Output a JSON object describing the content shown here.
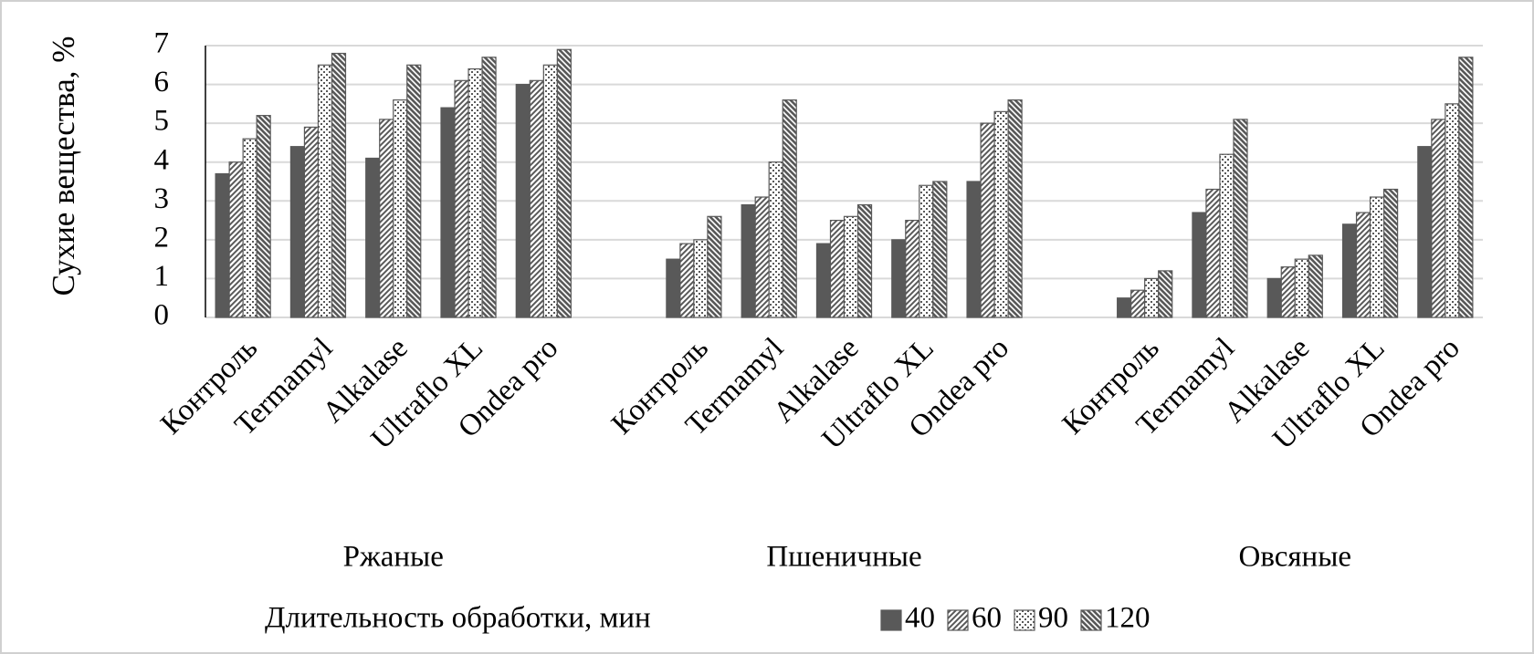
{
  "chart_data": {
    "type": "grouped-bar",
    "y_label": "Сухие вещества, %",
    "groups": [
      {
        "name": "Ржаные",
        "categories": [
          "Контроль",
          "Termamyl",
          "Alkalase",
          "Ultraflo XL",
          "Ondea pro"
        ]
      },
      {
        "name": "Пшеничные",
        "categories": [
          "Контроль",
          "Termamyl",
          "Alkalase",
          "Ultraflo XL",
          "Ondea pro"
        ]
      },
      {
        "name": "Овсяные",
        "categories": [
          "Контроль",
          "Termamyl",
          "Alkalase",
          "Ultraflo XL",
          "Ondea pro"
        ]
      }
    ],
    "legend_title": "Длительность обработки, мин",
    "series": [
      {
        "name": "40",
        "color": "#595959",
        "pattern": "solid",
        "values": [
          3.7,
          4.4,
          4.1,
          5.4,
          6.0,
          1.5,
          2.9,
          1.9,
          2.0,
          3.5,
          0.5,
          2.7,
          1.0,
          2.4,
          4.4
        ]
      },
      {
        "name": "60",
        "color": "#595959",
        "pattern": "diagonal",
        "values": [
          4.0,
          4.9,
          5.1,
          6.1,
          6.1,
          1.9,
          3.1,
          2.5,
          2.5,
          5.0,
          0.7,
          3.3,
          1.3,
          2.7,
          5.1
        ]
      },
      {
        "name": "90",
        "color": "#595959",
        "pattern": "checker",
        "values": [
          4.6,
          6.5,
          5.6,
          6.4,
          6.5,
          2.0,
          4.0,
          2.6,
          3.4,
          5.3,
          1.0,
          4.2,
          1.5,
          3.1,
          5.5
        ]
      },
      {
        "name": "120",
        "color": "#595959",
        "pattern": "back-diagonal",
        "values": [
          5.2,
          6.8,
          6.5,
          6.7,
          6.9,
          2.6,
          5.6,
          2.9,
          3.5,
          5.6,
          1.2,
          5.1,
          1.6,
          3.3,
          6.7
        ]
      }
    ],
    "ylim": [
      0,
      7
    ],
    "yticks": [
      0,
      1,
      2,
      3,
      4,
      5,
      6,
      7
    ],
    "grid": true
  }
}
